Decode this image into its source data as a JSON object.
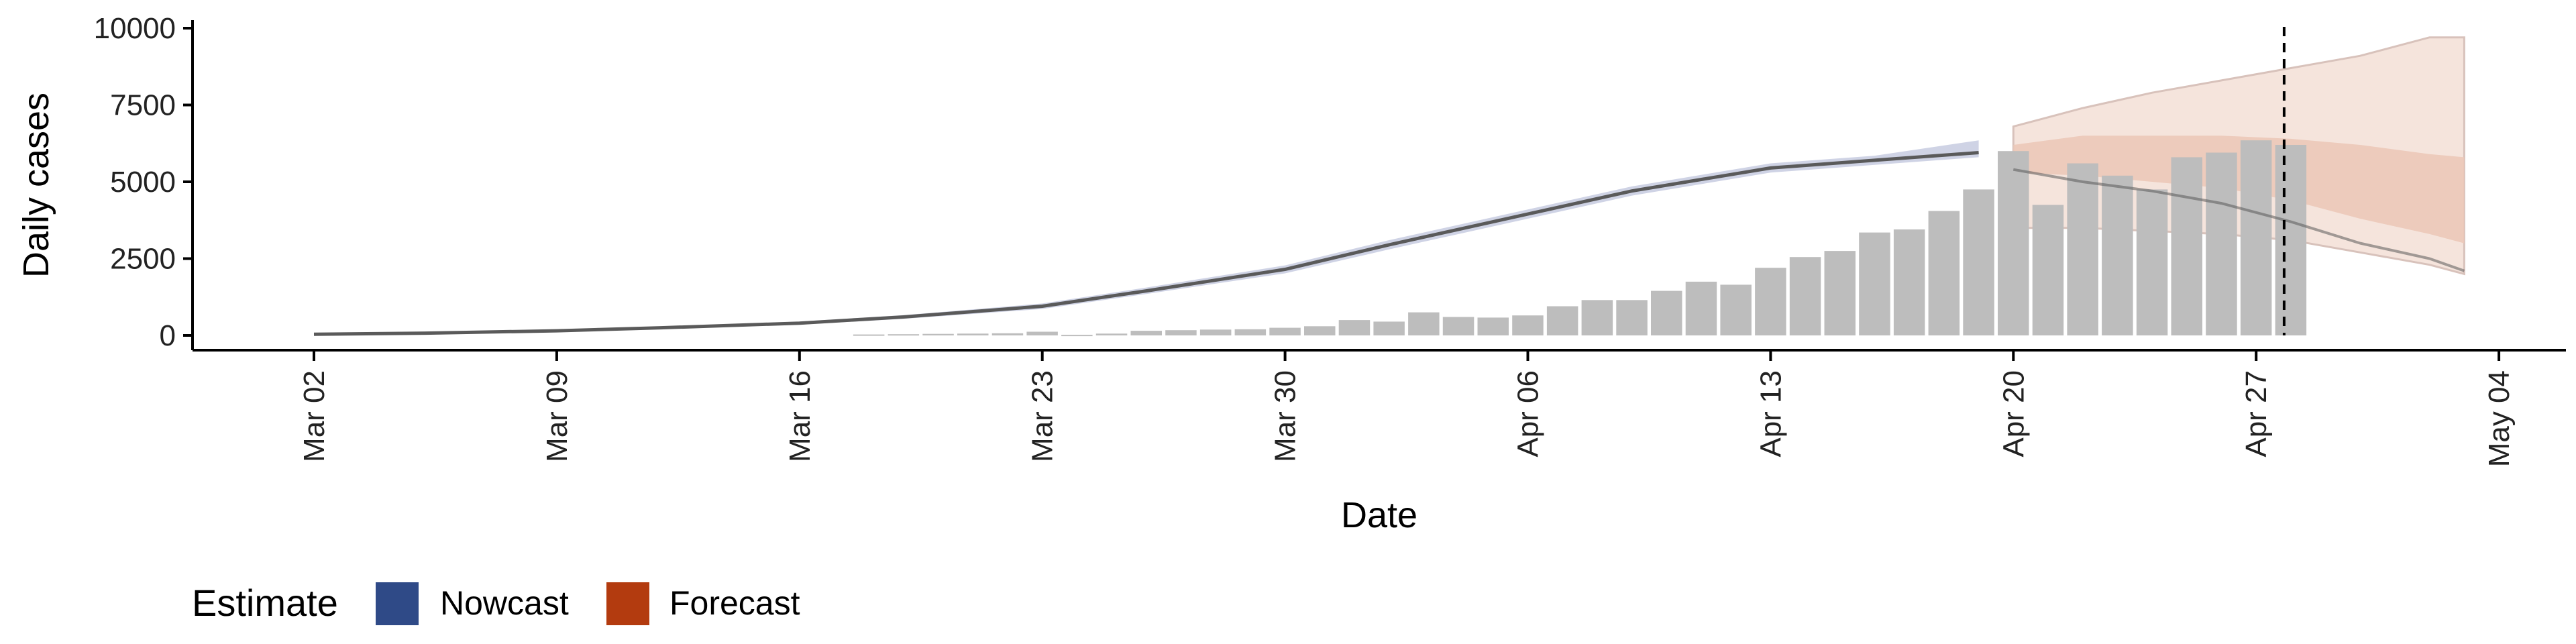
{
  "chart_data": {
    "type": "bar",
    "xlabel": "Date",
    "ylabel": "Daily cases",
    "ylim": [
      -200,
      10000
    ],
    "yticks": [
      0,
      2500,
      5000,
      7500,
      10000
    ],
    "xticks": [
      "2020-03-02",
      "2020-03-09",
      "2020-03-16",
      "2020-03-23",
      "2020-03-30",
      "2020-04-06",
      "2020-04-13",
      "2020-04-20",
      "2020-04-27",
      "2020-05-04"
    ],
    "xtick_labels": [
      "Mar 02",
      "Mar 09",
      "Mar 16",
      "Mar 23",
      "Mar 30",
      "Apr 06",
      "Apr 13",
      "Apr 20",
      "Apr 27",
      "May 04"
    ],
    "xlim": [
      "2020-02-25",
      "2020-05-06"
    ],
    "vline_date": "2020-04-28",
    "grid": false,
    "legend": {
      "title": "Estimate",
      "position": "bottom-left",
      "entries": [
        {
          "label": "Nowcast",
          "color": "#2f4a87"
        },
        {
          "label": "Forecast",
          "color": "#b33b0f"
        }
      ]
    },
    "colors": {
      "bars": "#bdbdbd",
      "nowcast_band": "#c7cbe0",
      "forecast_band_outer": "#f5e4dc",
      "forecast_band_inner": "#ecc8b8",
      "median_line": "#5a5a5a"
    },
    "bars": {
      "dates": [
        "2020-03-18",
        "2020-03-19",
        "2020-03-20",
        "2020-03-21",
        "2020-03-22",
        "2020-03-23",
        "2020-03-24",
        "2020-03-25",
        "2020-03-26",
        "2020-03-27",
        "2020-03-28",
        "2020-03-29",
        "2020-03-30",
        "2020-03-31",
        "2020-04-01",
        "2020-04-02",
        "2020-04-03",
        "2020-04-04",
        "2020-04-05",
        "2020-04-06",
        "2020-04-07",
        "2020-04-08",
        "2020-04-09",
        "2020-04-10",
        "2020-04-11",
        "2020-04-12",
        "2020-04-13",
        "2020-04-14",
        "2020-04-15",
        "2020-04-16",
        "2020-04-17",
        "2020-04-18",
        "2020-04-19",
        "2020-04-20",
        "2020-04-21",
        "2020-04-22",
        "2020-04-23",
        "2020-04-24",
        "2020-04-25",
        "2020-04-26",
        "2020-04-27",
        "2020-04-28"
      ],
      "values": [
        30,
        40,
        50,
        60,
        70,
        120,
        20,
        60,
        150,
        170,
        190,
        200,
        250,
        300,
        500,
        450,
        750,
        600,
        580,
        650,
        950,
        1150,
        1150,
        1450,
        1750,
        1650,
        2200,
        2550,
        2750,
        3350,
        3450,
        4050,
        4750,
        6000,
        4250,
        5600,
        5200,
        4750,
        5800,
        5950,
        6350,
        6200
      ]
    },
    "nowcast": {
      "dates": [
        "2020-03-02",
        "2020-03-05",
        "2020-03-09",
        "2020-03-12",
        "2020-03-16",
        "2020-03-19",
        "2020-03-23",
        "2020-03-26",
        "2020-03-30",
        "2020-04-02",
        "2020-04-06",
        "2020-04-09",
        "2020-04-13",
        "2020-04-16",
        "2020-04-19"
      ],
      "median": [
        40,
        70,
        150,
        250,
        400,
        600,
        950,
        1450,
        2150,
        2950,
        3950,
        4700,
        5450,
        5700,
        5950
      ],
      "lower": [
        20,
        50,
        120,
        210,
        350,
        540,
        860,
        1350,
        2020,
        2800,
        3800,
        4550,
        5300,
        5550,
        5800
      ],
      "upper": [
        60,
        90,
        180,
        290,
        450,
        660,
        1040,
        1560,
        2280,
        3100,
        4100,
        4850,
        5600,
        5850,
        6350
      ]
    },
    "forecast": {
      "dates": [
        "2020-04-20",
        "2020-04-22",
        "2020-04-24",
        "2020-04-26",
        "2020-04-28",
        "2020-04-30",
        "2020-05-02",
        "2020-05-03"
      ],
      "median": [
        5400,
        5000,
        4700,
        4300,
        3700,
        3000,
        2500,
        2100
      ],
      "lower_outer": [
        3500,
        3500,
        3400,
        3300,
        3100,
        2700,
        2300,
        2000
      ],
      "upper_outer": [
        6800,
        7400,
        7900,
        8300,
        8700,
        9100,
        9700,
        9700
      ],
      "lower_inner": [
        5300,
        5200,
        5000,
        4800,
        4400,
        3800,
        3300,
        3000
      ],
      "upper_inner": [
        6200,
        6500,
        6500,
        6500,
        6400,
        6200,
        5900,
        5800
      ]
    }
  }
}
